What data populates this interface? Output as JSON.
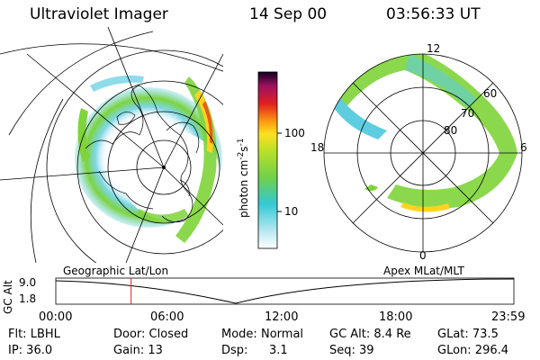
{
  "header": {
    "instrument": "Ultraviolet Imager",
    "date": "14 Sep 00",
    "time": "03:56:33 UT"
  },
  "colorbar": {
    "label": "photon cm",
    "label_sup1": "-2",
    "label_mid": "s",
    "label_sup2": "-1",
    "ticks": [
      "100",
      "10"
    ]
  },
  "polar_plot": {
    "labels": {
      "top": "12",
      "left": "18",
      "right": "6",
      "bottom": "0"
    },
    "lat_rings": [
      "80",
      "70",
      "60"
    ]
  },
  "map_labels": {
    "left": "Geographic Lat/Lon",
    "right": "Apex  MLat/MLT"
  },
  "altitude_plot": {
    "ylabel": "GC Alt",
    "y_ticks": [
      "9.0",
      "1.8"
    ],
    "x_ticks": [
      "00:00",
      "06:00",
      "12:00",
      "18:00",
      "23:59"
    ],
    "current_time_marker_fraction": 0.1644
  },
  "info": {
    "filter": "Flt: LBHL",
    "ip": "IP: 36.0",
    "door": "Door: Closed",
    "gain": "Gain: 13",
    "mode_label": "Mode:",
    "mode_value": "Normal",
    "dsp_label": "Dsp:",
    "dsp_value": "3.1",
    "gc_alt": "GC Alt: 8.4 Re",
    "seq": "Seq: 39",
    "glat": "GLat:  73.5",
    "glon": "GLon: 296.4"
  },
  "colors": {
    "marker": "#e02020",
    "aurora_low": "#5ecde0",
    "aurora_mid": "#7ed43a",
    "aurora_high": "#ffd320",
    "aurora_peak": "#e85a10"
  }
}
